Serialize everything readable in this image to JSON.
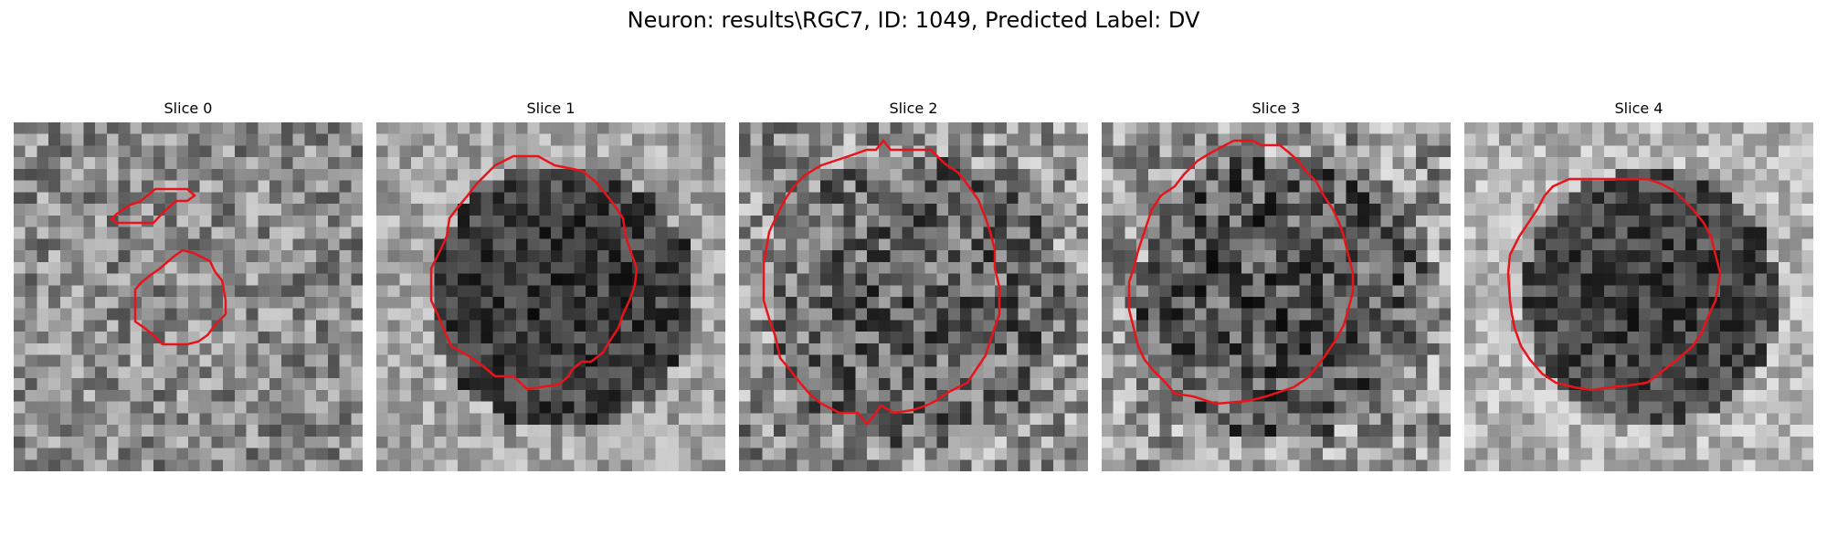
{
  "figure": {
    "title": "Neuron: results\\RGC7, ID: 1049, Predicted Label: DV"
  },
  "panels": [
    {
      "title": "Slice 0"
    },
    {
      "title": "Slice 1"
    },
    {
      "title": "Slice 2"
    },
    {
      "title": "Slice 3"
    },
    {
      "title": "Slice 4"
    }
  ],
  "colors": {
    "contour": "#e8141b",
    "colormap": "gray"
  }
}
